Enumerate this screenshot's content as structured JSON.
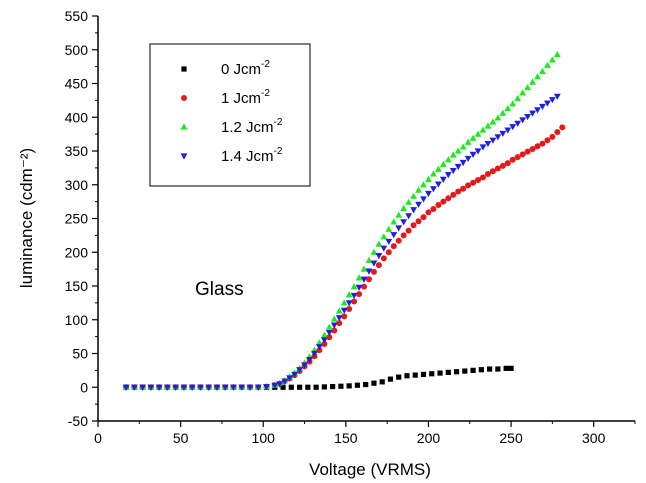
{
  "chart_data": {
    "type": "scatter",
    "title": "",
    "xlabel": "Voltage (VRMS)",
    "ylabel": "luminance (cdm⁻²)",
    "xlim": [
      0,
      325
    ],
    "ylim": [
      -50,
      550
    ],
    "xticks": [
      0,
      50,
      100,
      150,
      200,
      250,
      300
    ],
    "yticks": [
      -50,
      0,
      50,
      100,
      150,
      200,
      250,
      300,
      350,
      400,
      450,
      500,
      550
    ],
    "grid": false,
    "legend_position": "top-left",
    "annotation": "Glass",
    "series": [
      {
        "name": "0 Jcm",
        "sup": "-2",
        "marker": "square",
        "color": "#000000",
        "x": [
          17,
          22,
          27,
          32,
          37,
          42,
          47,
          52,
          57,
          62,
          67,
          72,
          77,
          82,
          87,
          92,
          97,
          102,
          107,
          112,
          117,
          122,
          127,
          132,
          137,
          142,
          147,
          152,
          157,
          162,
          167,
          172,
          177,
          182,
          187,
          192,
          197,
          202,
          207,
          212,
          217,
          222,
          227,
          232,
          237,
          242,
          247,
          250
        ],
        "y": [
          0,
          0,
          0,
          0,
          0,
          0,
          0,
          0,
          0,
          0,
          0,
          0,
          0,
          0,
          0,
          0,
          0,
          0,
          0,
          0,
          0,
          0,
          0,
          0,
          0.5,
          1,
          1.5,
          2,
          3,
          4,
          6,
          8,
          12,
          15,
          17,
          18,
          19,
          20,
          21,
          22,
          23,
          24,
          25,
          26,
          27,
          27,
          28,
          28
        ]
      },
      {
        "name": "1 Jcm",
        "sup": "-2",
        "marker": "circle",
        "color": "#e31a1c",
        "x": [
          17,
          22,
          27,
          32,
          37,
          42,
          47,
          52,
          57,
          62,
          67,
          72,
          77,
          82,
          87,
          92,
          97,
          102,
          107,
          110,
          113,
          116,
          119,
          122,
          125,
          128,
          131,
          134,
          137,
          140,
          143,
          146,
          149,
          152,
          155,
          158,
          161,
          164,
          167,
          170,
          173,
          176,
          179,
          182,
          185,
          188,
          191,
          194,
          197,
          200,
          203,
          206,
          209,
          212,
          215,
          218,
          221,
          224,
          227,
          230,
          233,
          236,
          239,
          242,
          245,
          248,
          251,
          254,
          257,
          260,
          263,
          266,
          269,
          272,
          275,
          278,
          281
        ],
        "y": [
          0,
          0,
          0,
          0,
          0,
          0,
          0,
          0,
          0,
          0,
          0,
          0,
          0,
          0,
          0,
          0,
          0,
          1,
          3,
          5,
          9,
          13,
          18,
          24,
          31,
          38,
          46,
          55,
          64,
          74,
          84,
          95,
          105,
          116,
          127,
          138,
          149,
          160,
          171,
          181,
          191,
          200,
          209,
          217,
          225,
          232,
          240,
          246,
          252,
          259,
          264,
          270,
          275,
          280,
          285,
          290,
          294,
          299,
          303,
          307,
          311,
          316,
          320,
          324,
          328,
          332,
          337,
          341,
          345,
          349,
          353,
          357,
          361,
          366,
          371,
          378,
          385
        ]
      },
      {
        "name": "1.2 Jcm",
        "sup": "-2",
        "marker": "triangle-up",
        "color": "#1ee81e",
        "x": [
          17,
          22,
          27,
          32,
          37,
          42,
          47,
          52,
          57,
          62,
          67,
          72,
          77,
          82,
          87,
          92,
          97,
          102,
          107,
          110,
          113,
          116,
          119,
          122,
          125,
          128,
          131,
          134,
          137,
          140,
          143,
          146,
          149,
          152,
          155,
          158,
          161,
          164,
          167,
          170,
          173,
          176,
          179,
          182,
          185,
          188,
          191,
          194,
          197,
          200,
          203,
          206,
          209,
          212,
          215,
          218,
          221,
          224,
          227,
          230,
          233,
          236,
          239,
          242,
          245,
          248,
          251,
          254,
          257,
          260,
          263,
          266,
          269,
          272,
          275,
          278
        ],
        "y": [
          0,
          0,
          0,
          0,
          0,
          0,
          0,
          0,
          0,
          0,
          0,
          0,
          0,
          0,
          0,
          0,
          0,
          1,
          3,
          6,
          10,
          15,
          21,
          28,
          36,
          45,
          55,
          66,
          77,
          89,
          101,
          113,
          125,
          137,
          149,
          162,
          175,
          188,
          200,
          212,
          223,
          234,
          245,
          255,
          265,
          274,
          283,
          292,
          300,
          308,
          316,
          323,
          330,
          337,
          344,
          350,
          356,
          363,
          369,
          375,
          381,
          387,
          393,
          399,
          406,
          413,
          420,
          428,
          436,
          444,
          452,
          460,
          468,
          477,
          485,
          493
        ]
      },
      {
        "name": "1.4 Jcm",
        "sup": "-2",
        "marker": "triangle-down",
        "color": "#1f1fe0",
        "x": [
          17,
          22,
          27,
          32,
          37,
          42,
          47,
          52,
          57,
          62,
          67,
          72,
          77,
          82,
          87,
          92,
          97,
          102,
          107,
          110,
          113,
          116,
          119,
          122,
          125,
          128,
          131,
          134,
          137,
          140,
          143,
          146,
          149,
          152,
          155,
          158,
          161,
          164,
          167,
          170,
          173,
          176,
          179,
          182,
          185,
          188,
          191,
          194,
          197,
          200,
          203,
          206,
          209,
          212,
          215,
          218,
          221,
          224,
          227,
          230,
          233,
          236,
          239,
          242,
          245,
          248,
          251,
          254,
          257,
          260,
          263,
          266,
          269,
          272,
          275,
          278
        ],
        "y": [
          0,
          0,
          0,
          0,
          0,
          0,
          0,
          0,
          0,
          0,
          0,
          0,
          0,
          0,
          0,
          0,
          0,
          1,
          3,
          5,
          9,
          14,
          19,
          26,
          33,
          41,
          50,
          60,
          70,
          81,
          92,
          103,
          114,
          125,
          136,
          148,
          160,
          172,
          184,
          195,
          206,
          216,
          226,
          236,
          245,
          254,
          263,
          271,
          279,
          287,
          294,
          301,
          308,
          315,
          321,
          327,
          333,
          339,
          345,
          350,
          356,
          361,
          366,
          371,
          376,
          381,
          386,
          391,
          396,
          401,
          406,
          411,
          416,
          421,
          426,
          431
        ]
      }
    ]
  }
}
